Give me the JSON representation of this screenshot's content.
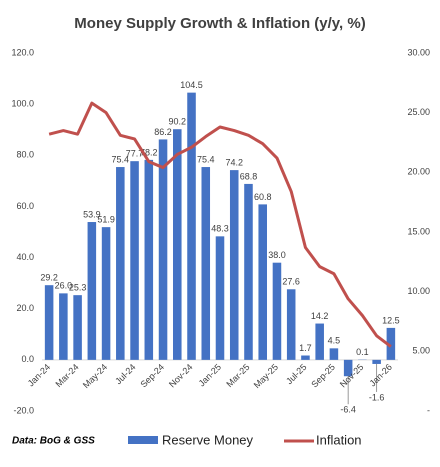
{
  "chart_data": {
    "type": "bar",
    "title": "Money Supply Growth &  Inflation (y/y, %)",
    "source": "Data: BoG & GSS",
    "categories": [
      "Jan-24",
      null,
      "Mar-24",
      null,
      "May-24",
      null,
      "Jul-24",
      null,
      "Sep-24",
      null,
      "Nov-24",
      null,
      "Jan-25",
      null,
      "Mar-25",
      null,
      "May-25",
      null,
      "Jul-25",
      null,
      "Sep-25",
      null,
      "Nov-25",
      null,
      "Jan-26"
    ],
    "series": [
      {
        "name": "Reserve Money",
        "color": "#4472c4",
        "type": "bar",
        "values": [
          29.2,
          26.0,
          25.3,
          53.9,
          51.9,
          75.4,
          77.7,
          78.2,
          86.2,
          90.2,
          104.5,
          75.4,
          48.3,
          74.2,
          68.8,
          60.8,
          38.0,
          27.6,
          1.7,
          14.2,
          4.5,
          -6.4,
          0.1,
          -1.6,
          12.5
        ],
        "value_labels": [
          "29.2",
          "26.0",
          "25.3",
          "53.9",
          "51.9",
          "75.4",
          "77.7",
          "78.2",
          "86.2",
          "90.2",
          "104.5",
          "75.4",
          "48.3",
          "74.2",
          "68.8",
          "60.8",
          "38.0",
          "27.6",
          "1.7",
          "14.2",
          "4.5",
          "-6.4",
          "0.1",
          "-1.6",
          "12.5"
        ]
      },
      {
        "name": "Inflation",
        "color": "#c0504d",
        "type": "line",
        "axis": "y2",
        "values": [
          23.2,
          23.5,
          23.2,
          25.8,
          25.0,
          23.1,
          22.8,
          20.9,
          20.4,
          21.5,
          22.1,
          23.0,
          23.8,
          23.5,
          23.1,
          22.4,
          21.2,
          18.4,
          13.7,
          12.1,
          11.5,
          9.4,
          8.0,
          6.3,
          5.4
        ]
      }
    ],
    "ylim": [
      -20,
      120
    ],
    "yticks": [
      {
        "value": -20,
        "label": "-20.0"
      },
      {
        "value": 0,
        "label": "0.0"
      },
      {
        "value": 20,
        "label": "20.0"
      },
      {
        "value": 40,
        "label": "40.0"
      },
      {
        "value": 60,
        "label": "60.0"
      },
      {
        "value": 80,
        "label": "80.0"
      },
      {
        "value": 100,
        "label": "100.0"
      },
      {
        "value": 120,
        "label": "120.0"
      }
    ],
    "y2lim": [
      0,
      30
    ],
    "y2ticks": [
      {
        "value": 0,
        "label": "-"
      },
      {
        "value": 5,
        "label": "5.00"
      },
      {
        "value": 10,
        "label": "10.00"
      },
      {
        "value": 15,
        "label": "15.00"
      },
      {
        "value": 20,
        "label": "20.00"
      },
      {
        "value": 25,
        "label": "25.00"
      },
      {
        "value": 30,
        "label": "30.00"
      }
    ],
    "grid": false,
    "legend": "bottom"
  }
}
